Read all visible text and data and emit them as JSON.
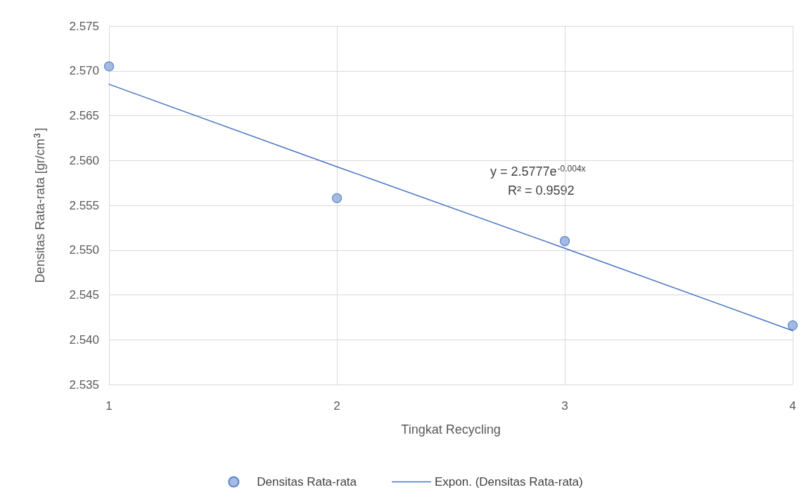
{
  "chart_data": {
    "type": "scatter",
    "xlabel": "Tingkat Recycling",
    "ylabel": "Densitas Rata-rata [gr/cm$^{3}$]",
    "xlim": [
      1,
      4
    ],
    "xticks": [
      1,
      2,
      3,
      4
    ],
    "ylim": [
      2.535,
      2.575
    ],
    "yticks": [
      {
        "value": 2.535,
        "label": "2.535"
      },
      {
        "value": 2.54,
        "label": "2.540"
      },
      {
        "value": 2.545,
        "label": "2.545"
      },
      {
        "value": 2.55,
        "label": "2.550"
      },
      {
        "value": 2.555,
        "label": "2.555"
      },
      {
        "value": 2.56,
        "label": "2.560"
      },
      {
        "value": 2.565,
        "label": "2.565"
      },
      {
        "value": 2.57,
        "label": "2.570"
      },
      {
        "value": 2.575,
        "label": "2.575"
      }
    ],
    "grid": true,
    "legend": "bottom",
    "marker": "circle",
    "series": [
      {
        "name": "Densitas Rata-rata",
        "color": "#8eaadb",
        "x": [
          1,
          2,
          3,
          4
        ],
        "values": [
          2.5705,
          2.5558,
          2.551,
          2.5416
        ]
      },
      {
        "name": "Expon. (Densitas Rata-rata)",
        "type": "line",
        "color": "#4472c4",
        "x": [
          1,
          2,
          3,
          4
        ],
        "values": [
          2.5685,
          2.5593,
          2.5502,
          2.541
        ],
        "line_style": "solid",
        "marker": "none"
      }
    ],
    "annotations": [
      "y = 2.5777e$^{-0.004x}$",
      "R² = 0.9592"
    ]
  }
}
